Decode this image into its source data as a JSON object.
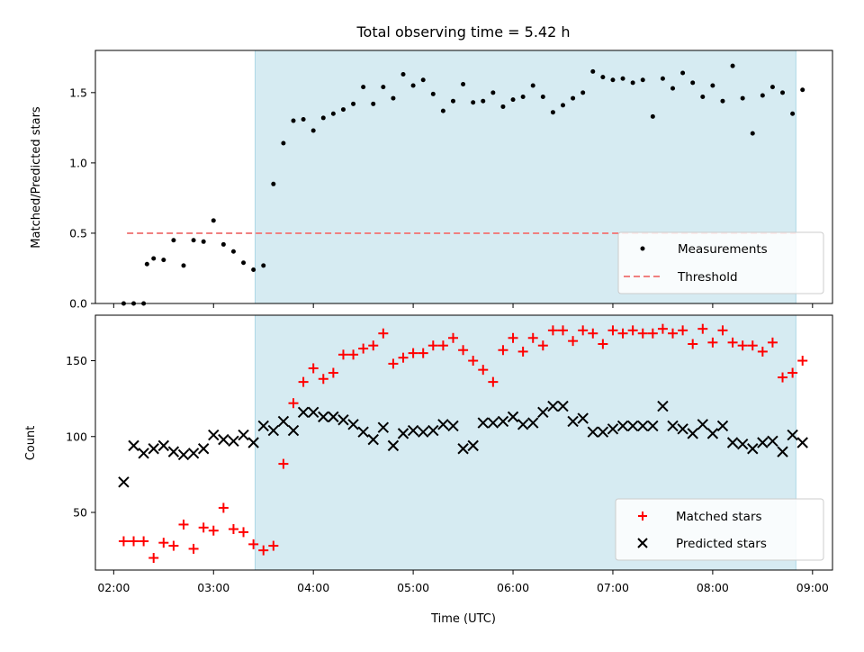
{
  "chart_data": [
    {
      "type": "scatter",
      "title": "Total observing time = 5.42 h",
      "xlabel": "",
      "ylabel": "Matched/Predicted stars",
      "xlim": [
        "01:49",
        "09:12"
      ],
      "ylim": [
        0,
        1.8
      ],
      "x_ticks": [
        "02:00",
        "03:00",
        "04:00",
        "05:00",
        "06:00",
        "07:00",
        "08:00",
        "09:00"
      ],
      "y_ticks": [
        "0.0",
        "0.5",
        "1.0",
        "1.5"
      ],
      "shaded_span": [
        "03:25",
        "08:50"
      ],
      "shaded_color": "#add8e6",
      "threshold": {
        "name": "Threshold",
        "value": 0.5,
        "x_start": "02:08",
        "x_end": "08:50",
        "color": "#f08080"
      },
      "legend": {
        "position": "lower-right",
        "entries": [
          "Measurements",
          "Threshold"
        ]
      },
      "series": [
        {
          "name": "Measurements",
          "color": "#000000",
          "x": [
            "02:06",
            "02:12",
            "02:18",
            "02:20",
            "02:24",
            "02:30",
            "02:36",
            "02:42",
            "02:48",
            "02:54",
            "03:00",
            "03:06",
            "03:12",
            "03:18",
            "03:24",
            "03:30",
            "03:36",
            "03:42",
            "03:48",
            "03:54",
            "04:00",
            "04:06",
            "04:12",
            "04:18",
            "04:24",
            "04:30",
            "04:36",
            "04:42",
            "04:48",
            "04:54",
            "05:00",
            "05:06",
            "05:12",
            "05:18",
            "05:24",
            "05:30",
            "05:36",
            "05:42",
            "05:48",
            "05:54",
            "06:00",
            "06:06",
            "06:12",
            "06:18",
            "06:24",
            "06:30",
            "06:36",
            "06:42",
            "06:48",
            "06:54",
            "07:00",
            "07:06",
            "07:12",
            "07:18",
            "07:24",
            "07:30",
            "07:36",
            "07:42",
            "07:48",
            "07:54",
            "08:00",
            "08:06",
            "08:12",
            "08:18",
            "08:24",
            "08:30",
            "08:36",
            "08:42",
            "08:48",
            "08:54"
          ],
          "values": [
            0.0,
            0.0,
            0.0,
            0.28,
            0.32,
            0.31,
            0.45,
            0.27,
            0.45,
            0.44,
            0.59,
            0.42,
            0.37,
            0.29,
            0.24,
            0.27,
            0.85,
            1.14,
            1.3,
            1.31,
            1.23,
            1.32,
            1.35,
            1.38,
            1.42,
            1.54,
            1.42,
            1.54,
            1.46,
            1.63,
            1.55,
            1.59,
            1.49,
            1.37,
            1.44,
            1.56,
            1.43,
            1.44,
            1.5,
            1.4,
            1.45,
            1.47,
            1.55,
            1.47,
            1.36,
            1.41,
            1.46,
            1.5,
            1.65,
            1.61,
            1.59,
            1.6,
            1.57,
            1.59,
            1.33,
            1.6,
            1.53,
            1.64,
            1.57,
            1.47,
            1.55,
            1.44,
            1.69,
            1.46,
            1.21,
            1.48,
            1.54,
            1.5,
            1.35,
            1.52
          ]
        }
      ]
    },
    {
      "type": "scatter",
      "title": "",
      "xlabel": "Time (UTC)",
      "ylabel": "Count",
      "xlim": [
        "01:49",
        "09:12"
      ],
      "ylim": [
        12,
        180
      ],
      "x_ticks": [
        "02:00",
        "03:00",
        "04:00",
        "05:00",
        "06:00",
        "07:00",
        "08:00",
        "09:00"
      ],
      "y_ticks": [
        "50",
        "100",
        "150"
      ],
      "shaded_span": [
        "03:25",
        "08:50"
      ],
      "shaded_color": "#add8e6",
      "legend": {
        "position": "lower-right",
        "entries": [
          "Matched stars",
          "Predicted stars"
        ]
      },
      "series": [
        {
          "name": "Matched stars",
          "color": "#ff0000",
          "marker": "plus",
          "x": [
            "02:06",
            "02:12",
            "02:18",
            "02:24",
            "02:30",
            "02:36",
            "02:42",
            "02:48",
            "02:54",
            "03:00",
            "03:06",
            "03:12",
            "03:18",
            "03:24",
            "03:30",
            "03:36",
            "03:42",
            "03:48",
            "03:54",
            "04:00",
            "04:06",
            "04:12",
            "04:18",
            "04:24",
            "04:30",
            "04:36",
            "04:42",
            "04:48",
            "04:54",
            "05:00",
            "05:06",
            "05:12",
            "05:18",
            "05:24",
            "05:30",
            "05:36",
            "05:42",
            "05:48",
            "05:54",
            "06:00",
            "06:06",
            "06:12",
            "06:18",
            "06:24",
            "06:30",
            "06:36",
            "06:42",
            "06:48",
            "06:54",
            "07:00",
            "07:06",
            "07:12",
            "07:18",
            "07:24",
            "07:30",
            "07:36",
            "07:42",
            "07:48",
            "07:54",
            "08:00",
            "08:06",
            "08:12",
            "08:18",
            "08:24",
            "08:30",
            "08:36",
            "08:42",
            "08:48",
            "08:54"
          ],
          "values": [
            31,
            31,
            31,
            20,
            30,
            28,
            42,
            26,
            40,
            38,
            53,
            39,
            37,
            29,
            25,
            28,
            82,
            122,
            136,
            145,
            138,
            142,
            154,
            154,
            158,
            160,
            168,
            148,
            152,
            155,
            155,
            160,
            160,
            165,
            157,
            150,
            144,
            136,
            157,
            165,
            156,
            165,
            160,
            170,
            170,
            163,
            170,
            168,
            161,
            170,
            168,
            170,
            168,
            168,
            171,
            168,
            170,
            161,
            171,
            162,
            170,
            162,
            160,
            160,
            156,
            162,
            139,
            142,
            150
          ],
          "values_extra_note": ""
        },
        {
          "name": "Predicted stars",
          "color": "#000000",
          "marker": "x",
          "x": [
            "02:06",
            "02:12",
            "02:18",
            "02:24",
            "02:30",
            "02:36",
            "02:42",
            "02:48",
            "02:54",
            "03:00",
            "03:06",
            "03:12",
            "03:18",
            "03:24",
            "03:30",
            "03:36",
            "03:42",
            "03:48",
            "03:54",
            "04:00",
            "04:06",
            "04:12",
            "04:18",
            "04:24",
            "04:30",
            "04:36",
            "04:42",
            "04:48",
            "04:54",
            "05:00",
            "05:06",
            "05:12",
            "05:18",
            "05:24",
            "05:30",
            "05:36",
            "05:42",
            "05:48",
            "05:54",
            "06:00",
            "06:06",
            "06:12",
            "06:18",
            "06:24",
            "06:30",
            "06:36",
            "06:42",
            "06:48",
            "06:54",
            "07:00",
            "07:06",
            "07:12",
            "07:18",
            "07:24",
            "07:30",
            "07:36",
            "07:42",
            "07:48",
            "07:54",
            "08:00",
            "08:06",
            "08:12",
            "08:18",
            "08:24",
            "08:30",
            "08:36",
            "08:42",
            "08:48",
            "08:54"
          ],
          "values": [
            70,
            94,
            89,
            92,
            94,
            90,
            88,
            89,
            92,
            101,
            98,
            97,
            101,
            96,
            107,
            104,
            110,
            104,
            116,
            116,
            113,
            113,
            111,
            108,
            103,
            98,
            106,
            94,
            102,
            104,
            103,
            104,
            108,
            107,
            92,
            94,
            109,
            109,
            110,
            113,
            108,
            109,
            116,
            120,
            120,
            110,
            112,
            103,
            103,
            105,
            107,
            107,
            107,
            107,
            120,
            107,
            105,
            102,
            108,
            102,
            107,
            96,
            95,
            92,
            96,
            97,
            90,
            101,
            96
          ]
        }
      ]
    }
  ]
}
